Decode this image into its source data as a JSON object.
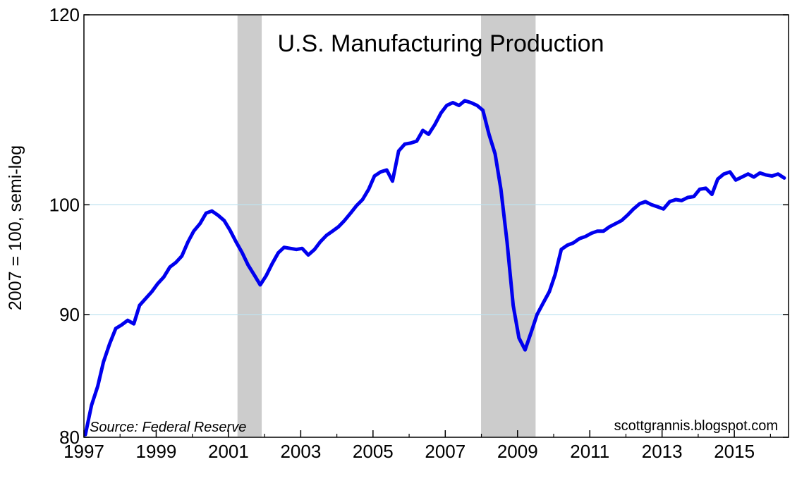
{
  "chart_data": {
    "type": "line",
    "title": "U.S. Manufacturing Production",
    "ylabel": "2007 = 100, semi-log",
    "xlabel": "",
    "y_scale": "log",
    "ylim": [
      80,
      120
    ],
    "xlim": [
      1997.0,
      2016.5
    ],
    "y_ticks": [
      80,
      90,
      100,
      120
    ],
    "x_ticks": [
      1997,
      1999,
      2001,
      2003,
      2005,
      2007,
      2009,
      2011,
      2013,
      2015
    ],
    "gridlines": [
      90,
      100
    ],
    "grid": true,
    "colors": {
      "line": "#0000ee",
      "recession": "#cccccc",
      "grid": "#bfe3f0"
    },
    "recessions": [
      {
        "start": 2001.25,
        "end": 2001.92
      },
      {
        "start": 2007.99,
        "end": 2009.5
      }
    ],
    "series": [
      {
        "name": "",
        "x": [
          1997.04,
          1997.21,
          1997.38,
          1997.54,
          1997.71,
          1997.88,
          1998.04,
          1998.21,
          1998.38,
          1998.54,
          1998.71,
          1998.88,
          1999.04,
          1999.21,
          1999.38,
          1999.54,
          1999.71,
          1999.88,
          2000.04,
          2000.21,
          2000.38,
          2000.54,
          2000.71,
          2000.88,
          2001.04,
          2001.21,
          2001.38,
          2001.54,
          2001.71,
          2001.88,
          2002.04,
          2002.21,
          2002.38,
          2002.54,
          2002.71,
          2002.88,
          2003.04,
          2003.21,
          2003.38,
          2003.54,
          2003.71,
          2003.88,
          2004.04,
          2004.21,
          2004.38,
          2004.54,
          2004.71,
          2004.88,
          2005.04,
          2005.21,
          2005.38,
          2005.54,
          2005.71,
          2005.88,
          2006.04,
          2006.21,
          2006.38,
          2006.54,
          2006.71,
          2006.88,
          2007.04,
          2007.21,
          2007.38,
          2007.54,
          2007.71,
          2007.88,
          2008.04,
          2008.21,
          2008.38,
          2008.54,
          2008.71,
          2008.88,
          2009.04,
          2009.21,
          2009.38,
          2009.54,
          2009.71,
          2009.88,
          2010.04,
          2010.21,
          2010.38,
          2010.54,
          2010.71,
          2010.88,
          2011.04,
          2011.21,
          2011.38,
          2011.54,
          2011.71,
          2011.88,
          2012.04,
          2012.21,
          2012.38,
          2012.54,
          2012.71,
          2012.88,
          2013.04,
          2013.21,
          2013.38,
          2013.54,
          2013.71,
          2013.88,
          2014.04,
          2014.21,
          2014.38,
          2014.54,
          2014.71,
          2014.88,
          2015.04,
          2015.21,
          2015.38,
          2015.54,
          2015.71,
          2015.88,
          2016.04,
          2016.21,
          2016.38
        ],
        "values": [
          80.2,
          82.5,
          84.0,
          86.0,
          87.5,
          88.8,
          89.1,
          89.5,
          89.2,
          90.8,
          91.4,
          92.0,
          92.7,
          93.3,
          94.2,
          94.6,
          95.2,
          96.5,
          97.5,
          98.2,
          99.2,
          99.4,
          99.0,
          98.5,
          97.6,
          96.5,
          95.5,
          94.4,
          93.5,
          92.6,
          93.4,
          94.5,
          95.5,
          96.0,
          95.9,
          95.8,
          95.9,
          95.3,
          95.8,
          96.5,
          97.1,
          97.5,
          97.9,
          98.5,
          99.2,
          99.9,
          100.5,
          101.5,
          102.8,
          103.2,
          103.4,
          102.3,
          105.3,
          106.0,
          106.1,
          106.3,
          107.4,
          107.0,
          108.0,
          109.2,
          110.0,
          110.3,
          110.0,
          110.5,
          110.3,
          110.0,
          109.5,
          107.0,
          105.0,
          101.5,
          96.5,
          90.8,
          88.0,
          87.0,
          88.5,
          90.0,
          91.0,
          92.0,
          93.5,
          95.8,
          96.2,
          96.4,
          96.8,
          97.0,
          97.3,
          97.5,
          97.5,
          97.9,
          98.2,
          98.5,
          99.0,
          99.6,
          100.1,
          100.3,
          100.0,
          99.8,
          99.6,
          100.3,
          100.5,
          100.4,
          100.7,
          100.8,
          101.5,
          101.6,
          101.0,
          102.5,
          103.0,
          103.2,
          102.4,
          102.7,
          103.0,
          102.7,
          103.1,
          102.9,
          102.8,
          103.0,
          102.6
        ]
      }
    ],
    "annotations": {
      "source": "Source: Federal Reserve",
      "credit": "scottgrannis.blogspot.com"
    }
  }
}
